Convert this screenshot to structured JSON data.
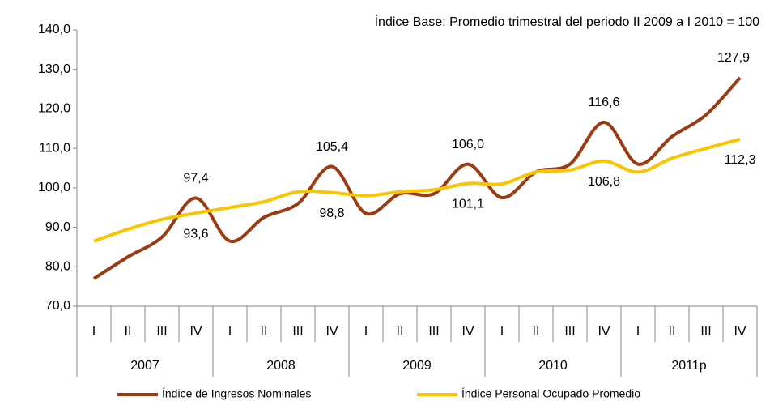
{
  "chart_data": {
    "type": "line",
    "annotation": "Índice Base: Promedio trimestral del periodo II 2009 a I 2010 = 100",
    "categories": [
      "I",
      "II",
      "III",
      "IV",
      "I",
      "II",
      "III",
      "IV",
      "I",
      "II",
      "III",
      "IV",
      "I",
      "II",
      "III",
      "IV",
      "I",
      "II",
      "III",
      "IV"
    ],
    "years": [
      "2007",
      "2008",
      "2009",
      "2010",
      "2011p"
    ],
    "series": [
      {
        "name": "Índice de Ingresos Nominales",
        "color": "#9c3b12",
        "values": [
          77,
          82.5,
          87.5,
          97.4,
          86.5,
          92.5,
          96,
          105.4,
          93.5,
          98.5,
          98.5,
          106.0,
          97.5,
          104,
          106,
          116.6,
          106,
          113,
          118.5,
          127.9
        ],
        "value_labels": [
          null,
          null,
          null,
          "97,4",
          null,
          null,
          null,
          "105,4",
          null,
          null,
          null,
          "106,0",
          null,
          null,
          null,
          "116,6",
          null,
          null,
          null,
          "127,9"
        ]
      },
      {
        "name": "Índice Personal Ocupado Promedio",
        "color": "#f9c400",
        "values": [
          86.5,
          89.5,
          92,
          93.6,
          95,
          96.5,
          99,
          98.8,
          98,
          99,
          99.5,
          101.1,
          101,
          104,
          104.5,
          106.8,
          104,
          107.5,
          110,
          112.3
        ],
        "value_labels": [
          null,
          null,
          null,
          "93,6",
          null,
          null,
          null,
          "98,8",
          null,
          null,
          null,
          "101,1",
          null,
          null,
          null,
          "106,8",
          null,
          null,
          null,
          "112,3"
        ]
      }
    ],
    "ylim": [
      70,
      140
    ],
    "yticks": [
      {
        "value": 70,
        "label": "70,0"
      },
      {
        "value": 80,
        "label": "80,0"
      },
      {
        "value": 90,
        "label": "90,0"
      },
      {
        "value": 100,
        "label": "100,0"
      },
      {
        "value": 110,
        "label": "110,0"
      },
      {
        "value": 120,
        "label": "120,0"
      },
      {
        "value": 130,
        "label": "130,0"
      },
      {
        "value": 140,
        "label": "140,0"
      }
    ],
    "legend": "bottom"
  }
}
